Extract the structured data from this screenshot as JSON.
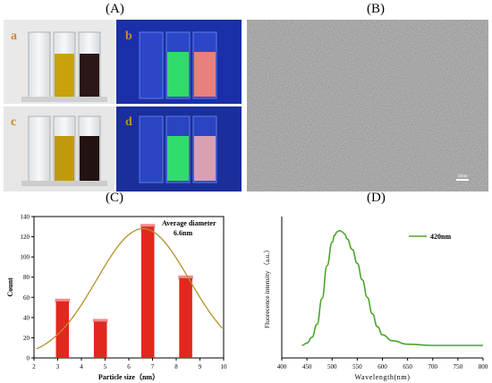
{
  "panels": {
    "a": "(A)",
    "b": "(B)",
    "c": "(C)",
    "d": "(D)"
  },
  "photo_labels": {
    "a": "a",
    "b": "b",
    "c": "c",
    "d": "d"
  },
  "tem": {
    "scale_bar": "10nm"
  },
  "chart_data": [
    {
      "type": "bar",
      "title": "",
      "annotation": [
        "Average diameter",
        "6.6nm"
      ],
      "xlabel": "Particle size（nm）",
      "ylabel": "Count",
      "xlim": [
        2,
        10
      ],
      "ylim": [
        0,
        140
      ],
      "xticks": [
        2,
        3,
        4,
        5,
        6,
        7,
        8,
        9,
        10
      ],
      "yticks": [
        0,
        20,
        40,
        60,
        80,
        100,
        120,
        140
      ],
      "bars": [
        {
          "x": 3.2,
          "value": 56
        },
        {
          "x": 4.8,
          "value": 36
        },
        {
          "x": 6.8,
          "value": 130
        },
        {
          "x": 8.4,
          "value": 79
        }
      ],
      "fit_curve": {
        "type": "gaussian",
        "mean": 6.6,
        "peak": 128,
        "sigma": 1.95,
        "color": "#b8902a"
      },
      "bar_color": "#e0281e"
    },
    {
      "type": "line",
      "title": "",
      "xlabel": "Wavelength(nm)",
      "ylabel": "Fluorecence intensity （a.u.）",
      "xlim": [
        400,
        800
      ],
      "xticks": [
        400,
        450,
        500,
        550,
        600,
        650,
        700,
        750,
        800
      ],
      "series": [
        {
          "name": "420nm",
          "color": "#4aa52a",
          "x": [
            440,
            450,
            460,
            470,
            480,
            490,
            500,
            505,
            510,
            515,
            520,
            525,
            530,
            540,
            550,
            560,
            570,
            580,
            590,
            600,
            620,
            650,
            700,
            750,
            800
          ],
          "y": [
            0.02,
            0.04,
            0.09,
            0.2,
            0.42,
            0.7,
            0.9,
            0.96,
            0.99,
            1.0,
            0.99,
            0.97,
            0.93,
            0.84,
            0.72,
            0.58,
            0.43,
            0.29,
            0.18,
            0.11,
            0.06,
            0.03,
            0.02,
            0.02,
            0.02
          ]
        }
      ]
    }
  ]
}
